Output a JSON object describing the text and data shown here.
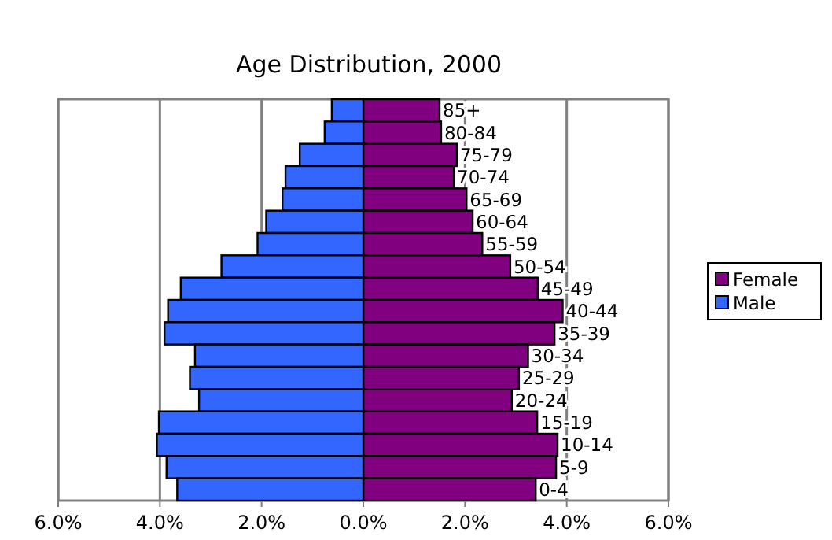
{
  "chart_data": {
    "type": "bar",
    "orientation": "horizontal",
    "title": "Age Distribution, 2000",
    "categories": [
      "85+",
      "80-84",
      "75-79",
      "70-74",
      "65-69",
      "60-64",
      "55-59",
      "50-54",
      "45-49",
      "40-44",
      "35-39",
      "30-34",
      "25-29",
      "20-24",
      "15-19",
      "10-14",
      "5-9",
      "0-4"
    ],
    "series": [
      {
        "name": "Female",
        "color": "#800080",
        "values": [
          1.5,
          1.53,
          1.84,
          1.78,
          2.03,
          2.15,
          2.34,
          2.89,
          3.43,
          3.92,
          3.76,
          3.24,
          3.06,
          2.92,
          3.42,
          3.82,
          3.79,
          3.39
        ]
      },
      {
        "name": "Male",
        "color": "#3366ff",
        "values": [
          -0.62,
          -0.76,
          -1.25,
          -1.53,
          -1.59,
          -1.91,
          -2.08,
          -2.79,
          -3.59,
          -3.84,
          -3.91,
          -3.31,
          -3.41,
          -3.23,
          -4.02,
          -4.06,
          -3.87,
          -3.66
        ]
      }
    ],
    "xlim": [
      -6,
      6
    ],
    "xticks": [
      {
        "value": -6,
        "label": "6.0%"
      },
      {
        "value": -4,
        "label": "4.0%"
      },
      {
        "value": -2,
        "label": "2.0%"
      },
      {
        "value": 0,
        "label": "0.0%"
      },
      {
        "value": 2,
        "label": "2.0%"
      },
      {
        "value": 4,
        "label": "4.0%"
      },
      {
        "value": 6,
        "label": "6.0%"
      }
    ],
    "stacked": true,
    "grid": "x",
    "legend": "right"
  }
}
